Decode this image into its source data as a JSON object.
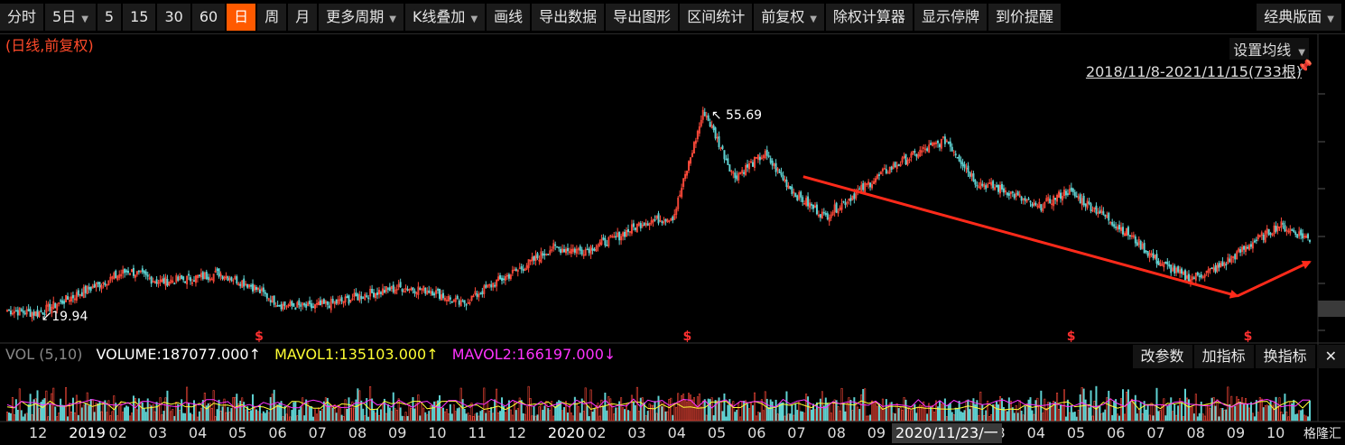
{
  "toolbar": {
    "items": [
      "分时",
      "5日",
      "5",
      "15",
      "30",
      "60",
      "日",
      "周",
      "月",
      "更多周期",
      "K线叠加",
      "画线",
      "导出数据",
      "导出图形",
      "区间统计",
      "前复权",
      "除权计算器",
      "显示停牌",
      "到价提醒"
    ],
    "active_index": 6,
    "right_item": "经典版面"
  },
  "chart_header": {
    "subtitle": "(日线,前复权)",
    "ma_setting": "设置均线",
    "date_range": "2018/11/8-2021/11/15(733根)"
  },
  "annotations": {
    "high_label": "55.69",
    "low_label": "19.94",
    "dividend_marker": "$"
  },
  "volume": {
    "legend": {
      "name": "VOL (5,10)",
      "volume": "VOLUME:187077.000↑",
      "mavol1": "MAVOL1:135103.000↑",
      "mavol2": "MAVOL2:166197.000↓"
    },
    "buttons": [
      "改参数",
      "加指标",
      "换指标"
    ],
    "close_icon": "close-icon"
  },
  "x_axis": {
    "labels": [
      "12",
      "2019",
      "02",
      "03",
      "04",
      "05",
      "06",
      "07",
      "08",
      "09",
      "10",
      "11",
      "12",
      "2020",
      "02",
      "03",
      "04",
      "05",
      "06",
      "07",
      "08",
      "09",
      "10",
      "11",
      "03",
      "04",
      "05",
      "06",
      "07",
      "08",
      "09",
      "10"
    ],
    "cursor_label": "2020/11/23/一"
  },
  "watermark": "格隆汇",
  "colors": {
    "up": "#ff4a3a",
    "down": "#5fd2d2",
    "trend_arrow": "#ff2a1a",
    "mavol1": "#ffff33",
    "mavol2": "#ff33ff",
    "active_tab": "#ff5a00"
  },
  "chart_data": {
    "type": "candlestick",
    "title": "",
    "period": "daily, forward-adjusted",
    "x_range": [
      "2018-11-08",
      "2021-11-15"
    ],
    "bar_count": 733,
    "ylim": [
      16,
      60
    ],
    "key_points": [
      {
        "x": "2018-11",
        "y": 20.5
      },
      {
        "x": "2019-01",
        "y": 19.94,
        "label": "19.94"
      },
      {
        "x": "2019-02",
        "y": 22.5
      },
      {
        "x": "2019-03",
        "y": 25.0
      },
      {
        "x": "2019-04",
        "y": 27.5
      },
      {
        "x": "2019-05",
        "y": 25.5
      },
      {
        "x": "2019-06",
        "y": 26.0
      },
      {
        "x": "2019-07",
        "y": 27.0
      },
      {
        "x": "2019-07",
        "y": 25.0
      },
      {
        "x": "2019-08",
        "y": 21.5
      },
      {
        "x": "2019-09",
        "y": 21.0
      },
      {
        "x": "2019-10",
        "y": 22.0
      },
      {
        "x": "2019-11",
        "y": 23.5
      },
      {
        "x": "2019-12",
        "y": 24.5
      },
      {
        "x": "2020-01",
        "y": 24.0
      },
      {
        "x": "2020-02",
        "y": 21.5
      },
      {
        "x": "2020-03",
        "y": 25.0
      },
      {
        "x": "2020-04",
        "y": 28.0
      },
      {
        "x": "2020-05",
        "y": 31.5
      },
      {
        "x": "2020-06",
        "y": 31.0
      },
      {
        "x": "2020-07",
        "y": 33.0
      },
      {
        "x": "2020-08",
        "y": 36.0
      },
      {
        "x": "2020-08",
        "y": 37.0
      },
      {
        "x": "2020-09",
        "y": 55.69,
        "label": "55.69"
      },
      {
        "x": "2020-09",
        "y": 44.0
      },
      {
        "x": "2020-10",
        "y": 48.0
      },
      {
        "x": "2020-10",
        "y": 41.0
      },
      {
        "x": "2020-11",
        "y": 37.0
      },
      {
        "x": "2020-12",
        "y": 41.0
      },
      {
        "x": "2021-01",
        "y": 45.0
      },
      {
        "x": "2021-02",
        "y": 48.0
      },
      {
        "x": "2021-02",
        "y": 50.5
      },
      {
        "x": "2021-03",
        "y": 43.0
      },
      {
        "x": "2021-04",
        "y": 41.5
      },
      {
        "x": "2021-05",
        "y": 38.5
      },
      {
        "x": "2021-05",
        "y": 41.5
      },
      {
        "x": "2021-06",
        "y": 38.0
      },
      {
        "x": "2021-07",
        "y": 34.0
      },
      {
        "x": "2021-08",
        "y": 29.0
      },
      {
        "x": "2021-09",
        "y": 26.0
      },
      {
        "x": "2021-09",
        "y": 28.0
      },
      {
        "x": "2021-10",
        "y": 32.0
      },
      {
        "x": "2021-11",
        "y": 35.5
      },
      {
        "x": "2021-11",
        "y": 33.0
      }
    ],
    "trend_arrows": [
      {
        "from": {
          "x": "2020-09",
          "y": 44
        },
        "to": {
          "x": "2021-09",
          "y": 23
        }
      },
      {
        "from": {
          "x": "2021-09",
          "y": 23
        },
        "to": {
          "x": "2021-11",
          "y": 29
        }
      }
    ],
    "volume_series": [
      {
        "name": "VOLUME",
        "last": 187077.0
      },
      {
        "name": "MAVOL1",
        "last": 135103.0
      },
      {
        "name": "MAVOL2",
        "last": 166197.0
      }
    ]
  }
}
